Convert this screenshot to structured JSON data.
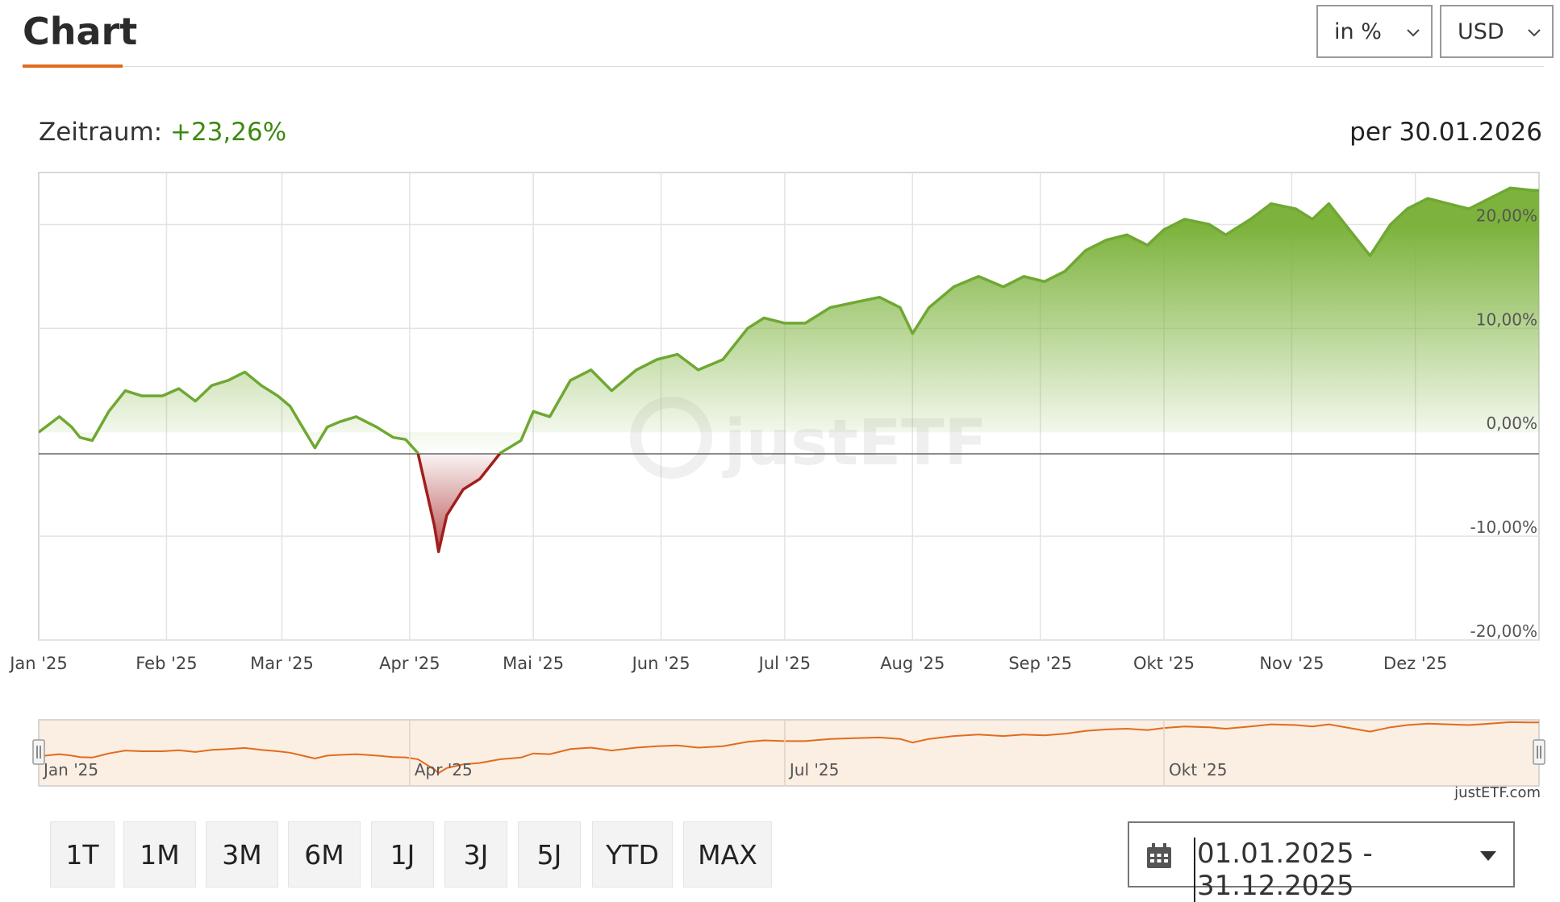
{
  "header": {
    "title": "Chart",
    "unit_select": "in %",
    "currency_select": "USD"
  },
  "summary": {
    "period_label": "Zeitraum:",
    "period_value": "+23,26%",
    "as_of": "per 30.01.2026"
  },
  "colors": {
    "positive": "#6fa832",
    "negative": "#a21d1d",
    "accent": "#e06c1f",
    "navigator_fill": "#fbeee2"
  },
  "watermark": "justETF",
  "credit": "justETF.com",
  "date_range": "01.01.2025 - 31.12.2025",
  "range_buttons": [
    "1T",
    "1M",
    "3M",
    "6M",
    "1J",
    "3J",
    "5J",
    "YTD",
    "MAX"
  ],
  "chart_data": {
    "type": "area",
    "x_unit": "date",
    "ylim": [
      -20,
      25
    ],
    "grid": true,
    "yticks": [
      "-20,00%",
      "-10,00%",
      "0,00%",
      "10,00%",
      "20,00%"
    ],
    "ytick_values": [
      -20,
      -10,
      0,
      10,
      20
    ],
    "xticks": [
      "Jan '25",
      "Feb '25",
      "Mar '25",
      "Apr '25",
      "Mai '25",
      "Jun '25",
      "Jul '25",
      "Aug '25",
      "Sep '25",
      "Okt '25",
      "Nov '25",
      "Dez '25"
    ],
    "navigator_ticks": [
      "Jan '25",
      "Apr '25",
      "Jul '25",
      "Okt '25"
    ],
    "series": [
      {
        "x": [
          "2025-01-01",
          "2025-01-06",
          "2025-01-09",
          "2025-01-11",
          "2025-01-14",
          "2025-01-18",
          "2025-01-22",
          "2025-01-26",
          "2025-01-31",
          "2025-02-04",
          "2025-02-08",
          "2025-02-12",
          "2025-02-16",
          "2025-02-20",
          "2025-02-24",
          "2025-02-28",
          "2025-03-03",
          "2025-03-06",
          "2025-03-09",
          "2025-03-12",
          "2025-03-15",
          "2025-03-19",
          "2025-03-24",
          "2025-03-28",
          "2025-03-31",
          "2025-04-03",
          "2025-04-07",
          "2025-04-08",
          "2025-04-10",
          "2025-04-14",
          "2025-04-18",
          "2025-04-23",
          "2025-04-28",
          "2025-05-01",
          "2025-05-05",
          "2025-05-10",
          "2025-05-15",
          "2025-05-20",
          "2025-05-26",
          "2025-05-31",
          "2025-06-05",
          "2025-06-10",
          "2025-06-16",
          "2025-06-22",
          "2025-06-26",
          "2025-07-01",
          "2025-07-06",
          "2025-07-12",
          "2025-07-18",
          "2025-07-24",
          "2025-07-29",
          "2025-08-01",
          "2025-08-05",
          "2025-08-11",
          "2025-08-17",
          "2025-08-23",
          "2025-08-28",
          "2025-09-02",
          "2025-09-07",
          "2025-09-12",
          "2025-09-17",
          "2025-09-22",
          "2025-09-27",
          "2025-10-01",
          "2025-10-06",
          "2025-10-12",
          "2025-10-16",
          "2025-10-22",
          "2025-10-27",
          "2025-11-02",
          "2025-11-06",
          "2025-11-10",
          "2025-11-15",
          "2025-11-20",
          "2025-11-25",
          "2025-11-29",
          "2025-12-04",
          "2025-12-09",
          "2025-12-14",
          "2025-12-19",
          "2025-12-24",
          "2025-12-29",
          "2025-12-31"
        ],
        "y": [
          0,
          1.5,
          0.5,
          -0.5,
          -0.8,
          2.0,
          4.0,
          3.5,
          3.5,
          4.2,
          3.0,
          4.5,
          5.0,
          5.8,
          4.5,
          3.5,
          2.5,
          0.5,
          -1.5,
          0.5,
          1.0,
          1.5,
          0.5,
          -0.5,
          -0.7,
          -2.0,
          -9.0,
          -11.5,
          -8.0,
          -5.5,
          -4.5,
          -2.0,
          -0.8,
          2.0,
          1.5,
          5.0,
          6.0,
          4.0,
          6.0,
          7.0,
          7.5,
          6.0,
          7.0,
          10.0,
          11.0,
          10.5,
          10.5,
          12.0,
          12.5,
          13.0,
          12.0,
          9.5,
          12.0,
          14.0,
          15.0,
          14.0,
          15.0,
          14.5,
          15.5,
          17.5,
          18.5,
          19.0,
          18.0,
          19.5,
          20.5,
          20.0,
          19.0,
          20.5,
          22.0,
          21.5,
          20.5,
          22.0,
          19.5,
          17.0,
          20.0,
          21.5,
          22.5,
          22.0,
          21.5,
          22.5,
          23.5,
          23.3,
          23.26
        ]
      }
    ]
  }
}
